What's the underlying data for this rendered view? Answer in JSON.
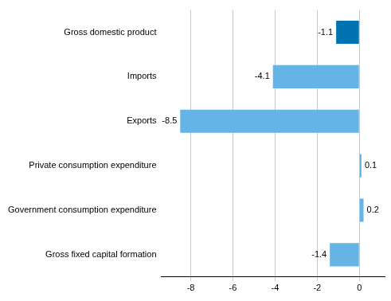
{
  "chart_data": {
    "type": "bar",
    "orientation": "horizontal",
    "categories": [
      "Gross domestic product",
      "Imports",
      "Exports",
      "Private consumption expenditure",
      "Government consumption expenditure",
      "Gross fixed capital formation"
    ],
    "values": [
      -1.1,
      -4.1,
      -8.5,
      0.1,
      0.2,
      -1.4
    ],
    "colors": [
      "#0073b0",
      "#66b3e6",
      "#66b3e6",
      "#66b3e6",
      "#66b3e6",
      "#66b3e6"
    ],
    "xlim": [
      -9.4,
      1.2
    ],
    "xticks": [
      -8,
      -6,
      -4,
      -2,
      0
    ],
    "grid": true,
    "data_labels": true
  }
}
